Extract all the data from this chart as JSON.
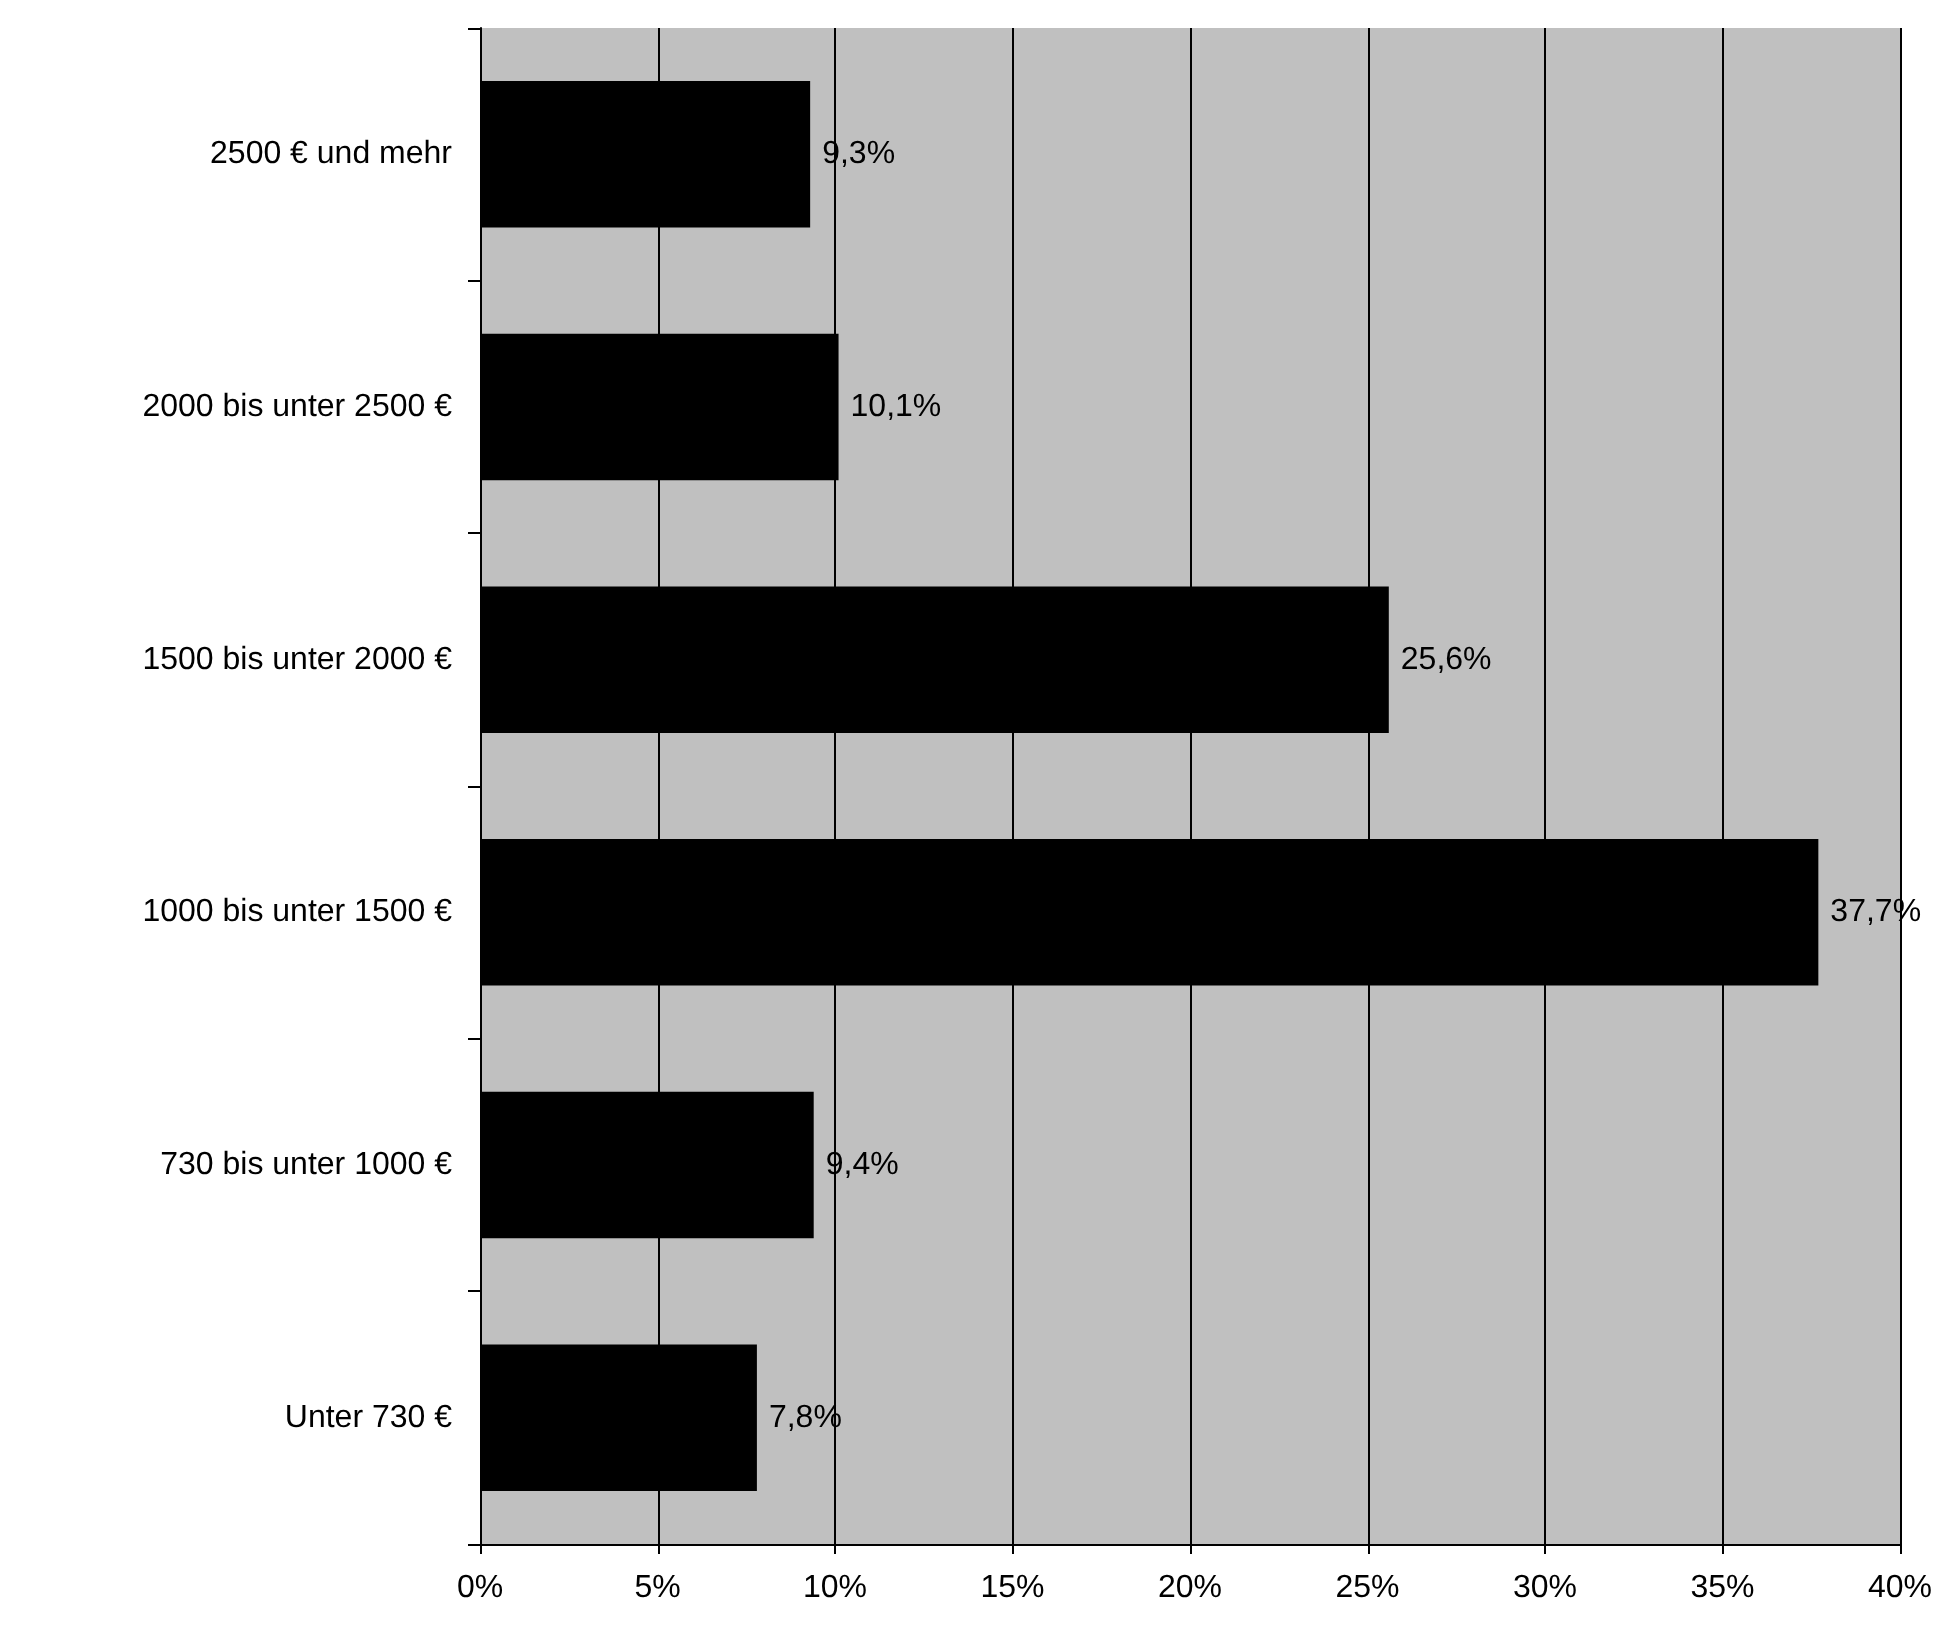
{
  "chart_data": {
    "type": "bar",
    "orientation": "horizontal",
    "categories": [
      "2500 € und mehr",
      "2000 bis unter 2500 €",
      "1500 bis unter 2000 €",
      "1000 bis unter 1500 €",
      "730 bis unter 1000 €",
      "Unter 730 €"
    ],
    "values": [
      9.3,
      10.1,
      25.6,
      37.7,
      9.4,
      7.8
    ],
    "value_labels": [
      "9,3%",
      "10,1%",
      "25,6%",
      "37,7%",
      "9,4%",
      "7,8%"
    ],
    "color": "#000000",
    "xlim": [
      0,
      40
    ],
    "xticks": [
      {
        "value": 0,
        "label": "0%"
      },
      {
        "value": 5,
        "label": "5%"
      },
      {
        "value": 10,
        "label": "10%"
      },
      {
        "value": 15,
        "label": "15%"
      },
      {
        "value": 20,
        "label": "20%"
      },
      {
        "value": 25,
        "label": "25%"
      },
      {
        "value": 30,
        "label": "30%"
      },
      {
        "value": 35,
        "label": "35%"
      },
      {
        "value": 40,
        "label": "40%"
      }
    ],
    "grid": "x"
  }
}
